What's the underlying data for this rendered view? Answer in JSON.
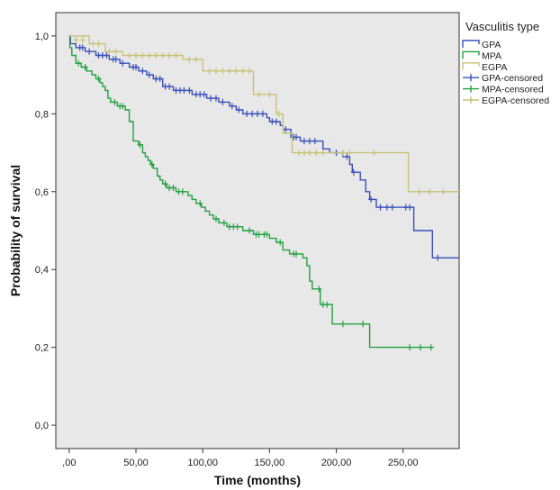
{
  "chart_data": {
    "type": "line",
    "title": "",
    "xlabel": "Time (months)",
    "ylabel": "Probability of survival",
    "xlim": [
      -10,
      292
    ],
    "ylim": [
      -0.06,
      1.06
    ],
    "x_ticks": [
      0,
      50,
      100,
      150,
      200,
      250
    ],
    "x_tick_labels": [
      ",00",
      "50,00",
      "100,00",
      "150,00",
      "200,00",
      "250,00"
    ],
    "y_ticks": [
      0.0,
      0.2,
      0.4,
      0.6,
      0.8,
      1.0
    ],
    "y_tick_labels": [
      "0,0",
      "0,2",
      "0,4",
      "0,6",
      "0,8",
      "1,0"
    ],
    "grid": false,
    "plot_background": "#e8e8e8",
    "legend": {
      "title": "Vasculitis type",
      "placement": "right",
      "entries": [
        "GPA",
        "MPA",
        "EGPA",
        "GPA-censored",
        "MPA-censored",
        "EGPA-censored"
      ]
    },
    "series": [
      {
        "name": "GPA",
        "color": "#3a4fb8",
        "steps": [
          [
            0,
            1.0
          ],
          [
            1,
            0.98
          ],
          [
            5,
            0.97
          ],
          [
            12,
            0.96
          ],
          [
            20,
            0.95
          ],
          [
            30,
            0.94
          ],
          [
            38,
            0.93
          ],
          [
            45,
            0.92
          ],
          [
            52,
            0.91
          ],
          [
            58,
            0.9
          ],
          [
            63,
            0.89
          ],
          [
            70,
            0.87
          ],
          [
            78,
            0.86
          ],
          [
            92,
            0.85
          ],
          [
            103,
            0.84
          ],
          [
            112,
            0.83
          ],
          [
            120,
            0.82
          ],
          [
            125,
            0.81
          ],
          [
            130,
            0.8
          ],
          [
            148,
            0.79
          ],
          [
            150,
            0.78
          ],
          [
            158,
            0.77
          ],
          [
            160,
            0.76
          ],
          [
            166,
            0.74
          ],
          [
            173,
            0.73
          ],
          [
            190,
            0.71
          ],
          [
            195,
            0.7
          ],
          [
            205,
            0.69
          ],
          [
            210,
            0.67
          ],
          [
            212,
            0.65
          ],
          [
            218,
            0.63
          ],
          [
            222,
            0.6
          ],
          [
            225,
            0.58
          ],
          [
            230,
            0.56
          ],
          [
            258,
            0.5
          ],
          [
            272,
            0.43
          ],
          [
            292,
            0.43
          ]
        ],
        "censored": [
          [
            8,
            0.97
          ],
          [
            10,
            0.97
          ],
          [
            15,
            0.96
          ],
          [
            22,
            0.95
          ],
          [
            25,
            0.95
          ],
          [
            28,
            0.95
          ],
          [
            33,
            0.94
          ],
          [
            35,
            0.94
          ],
          [
            40,
            0.93
          ],
          [
            48,
            0.92
          ],
          [
            50,
            0.92
          ],
          [
            55,
            0.91
          ],
          [
            60,
            0.9
          ],
          [
            65,
            0.89
          ],
          [
            68,
            0.89
          ],
          [
            72,
            0.87
          ],
          [
            75,
            0.87
          ],
          [
            80,
            0.86
          ],
          [
            83,
            0.86
          ],
          [
            86,
            0.86
          ],
          [
            90,
            0.86
          ],
          [
            95,
            0.85
          ],
          [
            98,
            0.85
          ],
          [
            101,
            0.85
          ],
          [
            106,
            0.84
          ],
          [
            110,
            0.84
          ],
          [
            115,
            0.83
          ],
          [
            122,
            0.82
          ],
          [
            127,
            0.81
          ],
          [
            133,
            0.8
          ],
          [
            137,
            0.8
          ],
          [
            141,
            0.8
          ],
          [
            145,
            0.8
          ],
          [
            152,
            0.78
          ],
          [
            155,
            0.78
          ],
          [
            162,
            0.76
          ],
          [
            168,
            0.74
          ],
          [
            170,
            0.74
          ],
          [
            176,
            0.73
          ],
          [
            180,
            0.73
          ],
          [
            184,
            0.73
          ],
          [
            200,
            0.7
          ],
          [
            208,
            0.69
          ],
          [
            213,
            0.65
          ],
          [
            226,
            0.58
          ],
          [
            233,
            0.56
          ],
          [
            238,
            0.56
          ],
          [
            242,
            0.56
          ],
          [
            252,
            0.56
          ],
          [
            255,
            0.56
          ],
          [
            276,
            0.43
          ]
        ]
      },
      {
        "name": "MPA",
        "color": "#22a040",
        "steps": [
          [
            0,
            1.0
          ],
          [
            0.5,
            0.97
          ],
          [
            2,
            0.95
          ],
          [
            5,
            0.93
          ],
          [
            9,
            0.92
          ],
          [
            13,
            0.91
          ],
          [
            17,
            0.9
          ],
          [
            20,
            0.89
          ],
          [
            23,
            0.88
          ],
          [
            25,
            0.87
          ],
          [
            27,
            0.86
          ],
          [
            29,
            0.84
          ],
          [
            31,
            0.83
          ],
          [
            36,
            0.82
          ],
          [
            42,
            0.81
          ],
          [
            45,
            0.78
          ],
          [
            48,
            0.73
          ],
          [
            52,
            0.72
          ],
          [
            55,
            0.7
          ],
          [
            57,
            0.69
          ],
          [
            59,
            0.68
          ],
          [
            61,
            0.67
          ],
          [
            63,
            0.66
          ],
          [
            66,
            0.64
          ],
          [
            68,
            0.63
          ],
          [
            70,
            0.62
          ],
          [
            73,
            0.61
          ],
          [
            80,
            0.6
          ],
          [
            89,
            0.59
          ],
          [
            92,
            0.58
          ],
          [
            95,
            0.57
          ],
          [
            99,
            0.56
          ],
          [
            102,
            0.55
          ],
          [
            105,
            0.54
          ],
          [
            108,
            0.53
          ],
          [
            112,
            0.52
          ],
          [
            118,
            0.51
          ],
          [
            130,
            0.5
          ],
          [
            138,
            0.49
          ],
          [
            150,
            0.48
          ],
          [
            155,
            0.47
          ],
          [
            160,
            0.45
          ],
          [
            165,
            0.44
          ],
          [
            175,
            0.43
          ],
          [
            178,
            0.41
          ],
          [
            180,
            0.37
          ],
          [
            182,
            0.35
          ],
          [
            188,
            0.31
          ],
          [
            197,
            0.26
          ],
          [
            225,
            0.2
          ],
          [
            272,
            0.2
          ]
        ],
        "censored": [
          [
            7,
            0.93
          ],
          [
            12,
            0.92
          ],
          [
            22,
            0.89
          ],
          [
            34,
            0.83
          ],
          [
            38,
            0.82
          ],
          [
            40,
            0.82
          ],
          [
            53,
            0.72
          ],
          [
            62,
            0.67
          ],
          [
            72,
            0.62
          ],
          [
            75,
            0.61
          ],
          [
            78,
            0.61
          ],
          [
            82,
            0.6
          ],
          [
            85,
            0.6
          ],
          [
            98,
            0.57
          ],
          [
            110,
            0.53
          ],
          [
            116,
            0.52
          ],
          [
            120,
            0.51
          ],
          [
            123,
            0.51
          ],
          [
            126,
            0.51
          ],
          [
            135,
            0.5
          ],
          [
            140,
            0.49
          ],
          [
            142,
            0.49
          ],
          [
            146,
            0.49
          ],
          [
            148,
            0.49
          ],
          [
            158,
            0.47
          ],
          [
            168,
            0.44
          ],
          [
            170,
            0.44
          ],
          [
            187,
            0.35
          ],
          [
            190,
            0.31
          ],
          [
            193,
            0.31
          ],
          [
            205,
            0.26
          ],
          [
            220,
            0.26
          ],
          [
            255,
            0.2
          ],
          [
            263,
            0.2
          ],
          [
            271,
            0.2
          ]
        ]
      },
      {
        "name": "EGPA",
        "color": "#c6c27a",
        "steps": [
          [
            0,
            1.0
          ],
          [
            15,
            0.98
          ],
          [
            27,
            0.96
          ],
          [
            40,
            0.95
          ],
          [
            85,
            0.94
          ],
          [
            100,
            0.91
          ],
          [
            138,
            0.85
          ],
          [
            155,
            0.8
          ],
          [
            160,
            0.75
          ],
          [
            167,
            0.7
          ],
          [
            230,
            0.7
          ],
          [
            254,
            0.6
          ],
          [
            292,
            0.6
          ]
        ],
        "censored": [
          [
            5,
            0.99
          ],
          [
            10,
            0.99
          ],
          [
            18,
            0.98
          ],
          [
            22,
            0.98
          ],
          [
            30,
            0.96
          ],
          [
            35,
            0.96
          ],
          [
            45,
            0.95
          ],
          [
            50,
            0.95
          ],
          [
            55,
            0.95
          ],
          [
            60,
            0.95
          ],
          [
            65,
            0.95
          ],
          [
            70,
            0.95
          ],
          [
            75,
            0.95
          ],
          [
            80,
            0.95
          ],
          [
            90,
            0.94
          ],
          [
            95,
            0.94
          ],
          [
            105,
            0.91
          ],
          [
            110,
            0.91
          ],
          [
            115,
            0.91
          ],
          [
            120,
            0.91
          ],
          [
            125,
            0.91
          ],
          [
            130,
            0.91
          ],
          [
            135,
            0.91
          ],
          [
            142,
            0.85
          ],
          [
            150,
            0.85
          ],
          [
            157,
            0.8
          ],
          [
            172,
            0.7
          ],
          [
            176,
            0.7
          ],
          [
            180,
            0.7
          ],
          [
            185,
            0.7
          ],
          [
            190,
            0.7
          ],
          [
            205,
            0.7
          ],
          [
            210,
            0.7
          ],
          [
            228,
            0.7
          ],
          [
            262,
            0.6
          ],
          [
            270,
            0.6
          ],
          [
            280,
            0.6
          ]
        ]
      }
    ]
  }
}
